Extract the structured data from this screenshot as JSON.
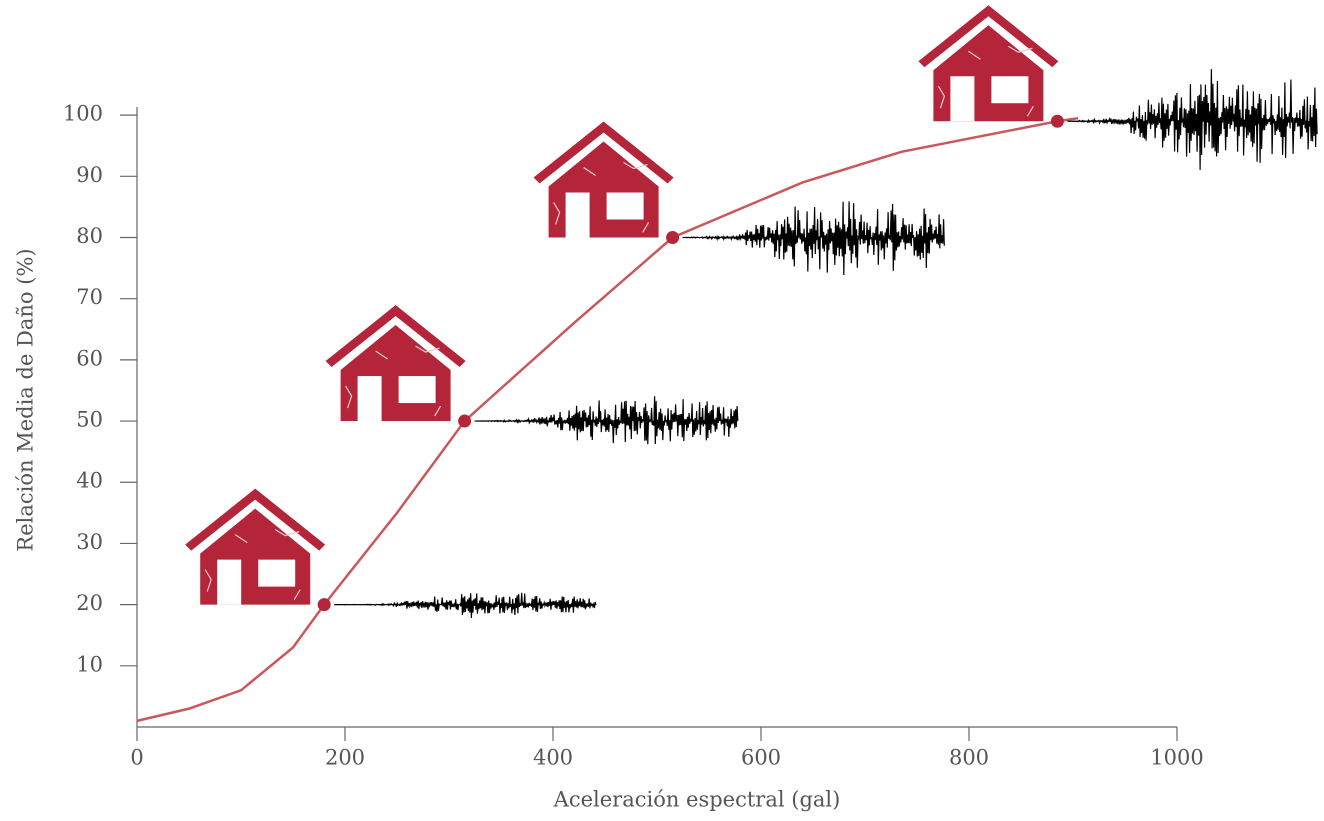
{
  "chart_data": {
    "type": "line",
    "x_label": "Aceleración espectral (gal)",
    "y_label": "Relación Media de Daño (%)",
    "xlim": [
      0,
      1000
    ],
    "ylim": [
      0,
      101
    ],
    "xticks": [
      0,
      200,
      400,
      600,
      800,
      1000
    ],
    "yticks": [
      10,
      20,
      30,
      40,
      50,
      60,
      70,
      80,
      90,
      100
    ],
    "series": [
      {
        "color": "#c9575c",
        "x": [
          0,
          50,
          100,
          150,
          180,
          250,
          315,
          420,
          515,
          640,
          735,
          885,
          905
        ],
        "values": [
          1,
          3,
          6,
          13,
          20,
          35,
          50,
          66,
          80,
          89,
          94,
          99,
          99.5
        ]
      },
      {
        "color": "#b5253a",
        "x": [
          180,
          315,
          515,
          885
        ],
        "values": [
          20,
          50,
          80,
          99
        ]
      }
    ]
  }
}
